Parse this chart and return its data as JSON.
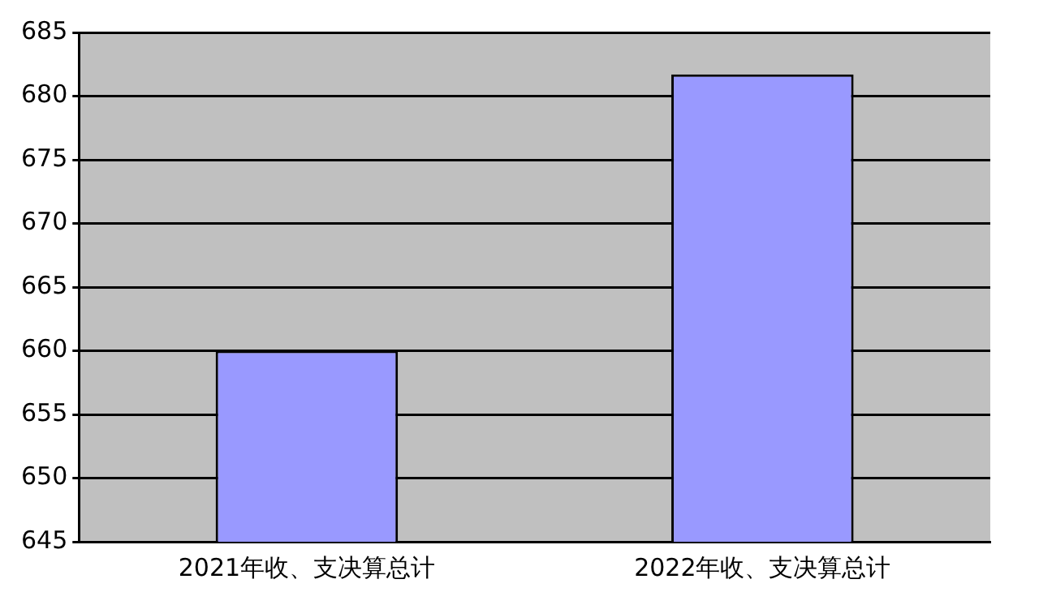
{
  "chart_data": {
    "type": "bar",
    "categories": [
      "2021年收、支决算总计",
      "2022年收、支决算总计"
    ],
    "values": [
      660,
      681.7
    ],
    "color": "#9999ff",
    "ylim": [
      645,
      685
    ],
    "yticks": [
      645,
      650,
      655,
      660,
      665,
      670,
      675,
      680,
      685
    ],
    "grid": "y",
    "legend": false
  }
}
